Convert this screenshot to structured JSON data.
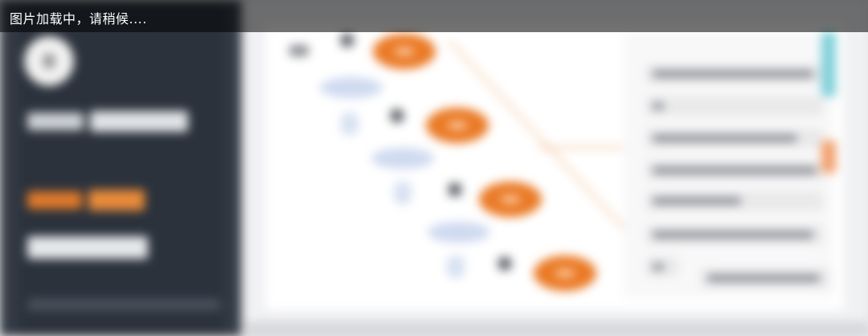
{
  "overlay": {
    "loading_text": "图片加载中，请稍候...."
  },
  "colors": {
    "dark_panel": "#2b323c",
    "accent_orange": "#ea7a26",
    "canvas_bg": "#ffffff",
    "banner_bg": "rgba(0,0,0,0.55)"
  },
  "icons": {
    "avatar": "user-avatar-icon"
  }
}
